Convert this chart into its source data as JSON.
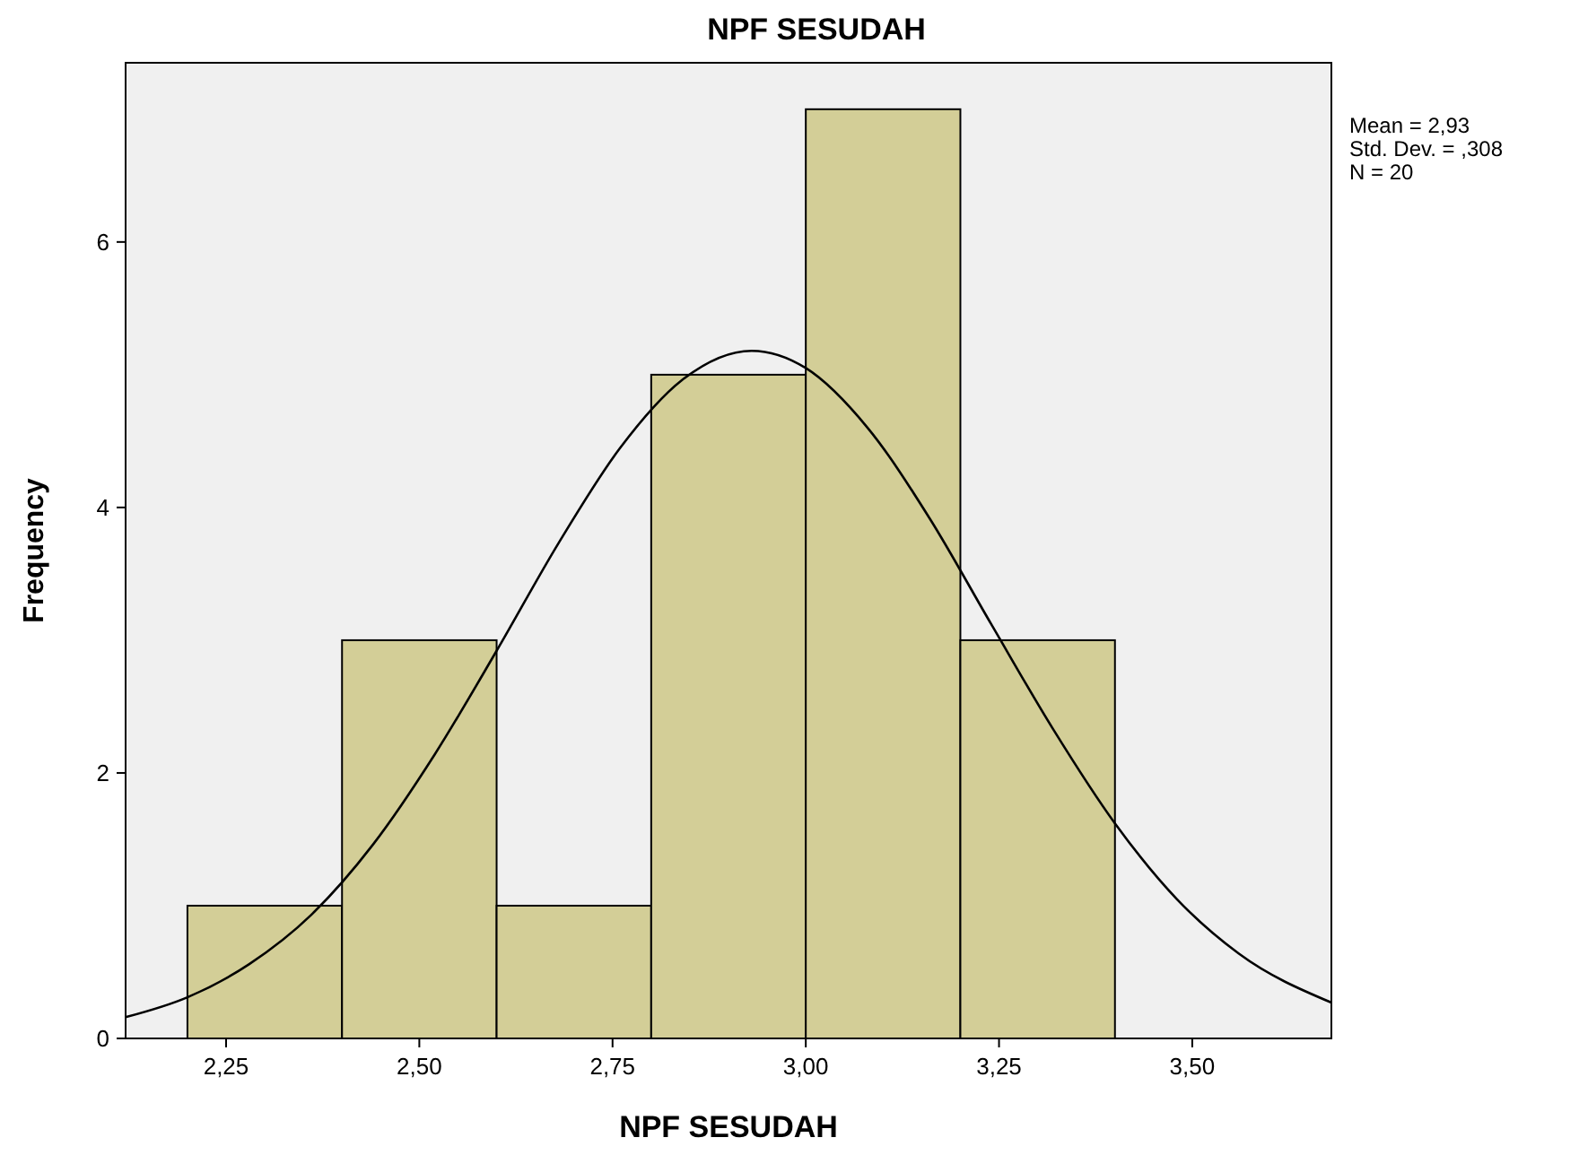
{
  "chart_data": {
    "type": "histogram",
    "title": "NPF SESUDAH",
    "xlabel": "NPF SESUDAH",
    "ylabel": "Frequency",
    "bins": [
      2.2,
      2.4,
      2.6,
      2.8,
      3.0,
      3.2,
      3.4
    ],
    "values": [
      1,
      3,
      1,
      5,
      7,
      3
    ],
    "color": "#d3ce97",
    "series": [
      {
        "type": "line",
        "color": "#000000",
        "x": [
          2.12,
          2.2,
          2.28,
          2.36,
          2.44,
          2.52,
          2.6,
          2.68,
          2.76,
          2.84,
          2.93,
          3.0,
          3.08,
          3.16,
          3.24,
          3.32,
          3.4,
          3.48,
          3.56,
          3.68
        ],
        "values": [
          0.16,
          0.31,
          0.56,
          0.93,
          1.46,
          2.14,
          2.92,
          3.73,
          4.45,
          4.96,
          5.18,
          5.05,
          4.6,
          3.92,
          3.12,
          2.33,
          1.62,
          1.05,
          0.64,
          0.27
        ]
      }
    ],
    "xlim": [
      2.12,
      3.68
    ],
    "ylim": [
      0,
      7.35
    ],
    "xticks": [
      {
        "value": 2.25,
        "label": "2,25"
      },
      {
        "value": 2.5,
        "label": "2,50"
      },
      {
        "value": 2.75,
        "label": "2,75"
      },
      {
        "value": 3.0,
        "label": "3,00"
      },
      {
        "value": 3.25,
        "label": "3,25"
      },
      {
        "value": 3.5,
        "label": "3,50"
      }
    ],
    "yticks": [
      0,
      2,
      4,
      6
    ],
    "grid": false,
    "annotations": [
      "Mean = 2,93",
      "Std. Dev. = ,308",
      "N = 20"
    ]
  }
}
